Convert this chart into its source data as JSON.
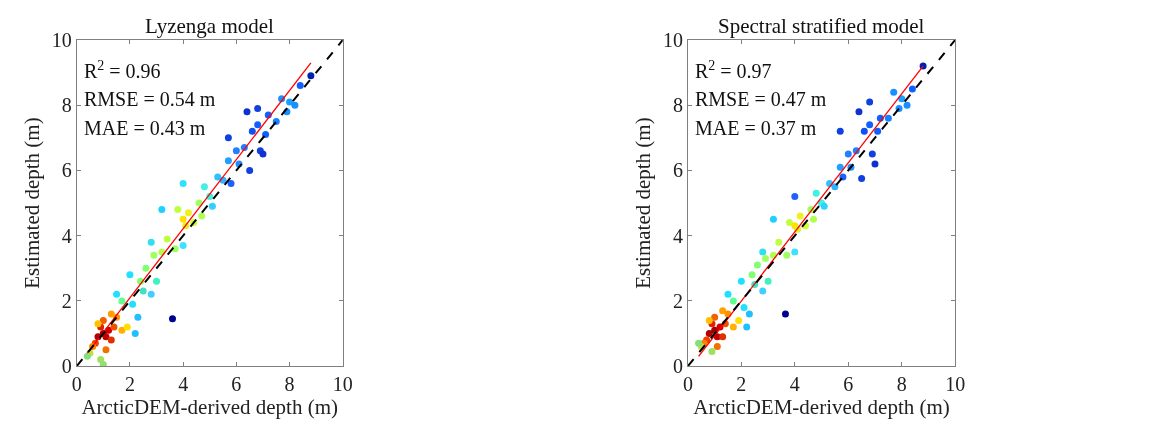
{
  "chart_data": [
    {
      "type": "scatter",
      "title": "Lyzenga model",
      "xlabel": "ArcticDEM-derived depth (m)",
      "ylabel": "Estimated depth (m)",
      "xlim": [
        0,
        10
      ],
      "ylim": [
        0,
        10
      ],
      "xticks": [
        0,
        2,
        4,
        6,
        8,
        10
      ],
      "yticks": [
        0,
        2,
        4,
        6,
        8,
        10
      ],
      "marker": "circle",
      "annotations": [
        "R$^{2}$ = 0.96",
        "RMSE = 0.54 m",
        "MAE = 0.43 m"
      ],
      "series": [
        {
          "x": [
            0.8,
            1.0,
            1.1,
            1.2,
            0.9,
            1.3,
            0.7,
            1.0,
            1.4,
            0.6,
            1.1,
            0.5,
            0.9,
            1.0,
            1.5,
            1.3,
            0.8,
            1.7,
            1.9,
            0.4,
            1.5,
            1.7,
            2.0,
            2.1,
            2.2,
            2.3,
            2.4,
            2.6,
            2.5,
            2.8,
            2.8,
            2.9,
            3.0,
            3.2,
            3.2,
            3.4,
            3.6,
            3.7,
            3.8,
            4.0,
            4.0,
            4.1,
            4.2,
            4.0,
            4.4,
            4.6,
            4.7,
            4.8,
            5.0,
            5.1,
            5.3,
            5.5,
            5.7,
            5.8,
            5.7,
            6.0,
            6.1,
            6.3,
            6.4,
            6.5,
            6.6,
            6.8,
            6.9,
            7.0,
            7.1,
            7.2,
            7.5,
            7.7,
            7.9,
            8.0,
            8.2,
            8.4,
            8.8,
            6.8
          ],
          "values": [
            0.9,
            1.0,
            0.9,
            1.1,
            1.2,
            0.8,
            0.7,
            1.4,
            1.2,
            0.6,
            0.5,
            0.4,
            0.2,
            0.05,
            1.5,
            1.6,
            1.3,
            1.1,
            1.2,
            0.3,
            2.2,
            2.0,
            2.8,
            1.9,
            1.0,
            1.5,
            2.6,
            3.0,
            2.3,
            2.2,
            3.8,
            3.4,
            2.6,
            4.8,
            3.5,
            3.9,
            1.45,
            3.6,
            4.8,
            4.5,
            5.6,
            4.3,
            4.7,
            3.7,
            4.4,
            5.0,
            4.6,
            5.5,
            5.2,
            4.9,
            5.8,
            5.7,
            6.3,
            5.6,
            7.0,
            6.6,
            6.2,
            6.7,
            7.8,
            6.0,
            7.2,
            7.4,
            6.6,
            6.5,
            7.1,
            7.7,
            7.5,
            8.2,
            7.8,
            8.1,
            8.0,
            8.6,
            8.9,
            7.9
          ],
          "colors": [
            "#b00000",
            "#a00000",
            "#c00000",
            "#d00000",
            "#e02000",
            "#e03000",
            "#f04000",
            "#f06000",
            "#f05000",
            "#ff8000",
            "#f07000",
            "#c0e040",
            "#a0e060",
            "#90e070",
            "#ff9000",
            "#ffa000",
            "#ffc000",
            "#ffb000",
            "#ffe000",
            "#80e080",
            "#20e0ff",
            "#60ff90",
            "#20e0ff",
            "#20e0ff",
            "#20c0ff",
            "#20c0ff",
            "#80ff70",
            "#80ff70",
            "#40e0c0",
            "#40d0ff",
            "#30e0f0",
            "#a0ff60",
            "#40f0c0",
            "#20d0ff",
            "#b0ff50",
            "#c0ff40",
            "#000090",
            "#a0ff60",
            "#c0ff40",
            "#ffe000",
            "#30e0ff",
            "#e0f020",
            "#f0f020",
            "#40e0ff",
            "#d0ff30",
            "#a0ff60",
            "#b0ff50",
            "#40f0e0",
            "#40f0e0",
            "#30d0ff",
            "#30c0ff",
            "#30b0ff",
            "#20a0ff",
            "#2060ff",
            "#1040e0",
            "#2080ff",
            "#2090ff",
            "#2080ff",
            "#1030d0",
            "#1040e0",
            "#1050f0",
            "#1060ff",
            "#1040e0",
            "#1030d0",
            "#1060ff",
            "#1060ff",
            "#1880ff",
            "#1890ff",
            "#1890ff",
            "#18a0ff",
            "#1890ff",
            "#1060ff",
            "#0020b0",
            "#1040e0"
          ]
        },
        {
          "type": "line",
          "x": [
            0.4,
            8.8
          ],
          "values": [
            0.4,
            9.3
          ],
          "color": "#ff0000",
          "line_style": "solid",
          "marker": "none"
        },
        {
          "type": "line",
          "x": [
            0,
            10
          ],
          "values": [
            0,
            10
          ],
          "color": "#000000",
          "line_style": "dashed",
          "marker": "none"
        }
      ]
    },
    {
      "type": "scatter",
      "title": "Spectral stratified model",
      "xlabel": "ArcticDEM-derived depth (m)",
      "ylabel": "Estimated depth (m)",
      "xlim": [
        0,
        10
      ],
      "ylim": [
        0,
        10
      ],
      "xticks": [
        0,
        2,
        4,
        6,
        8,
        10
      ],
      "yticks": [
        0,
        2,
        4,
        6,
        8,
        10
      ],
      "marker": "circle",
      "annotations": [
        "R$^{2}$ = 0.97",
        "RMSE = 0.47 m",
        "MAE = 0.37 m"
      ],
      "series": [
        {
          "x": [
            0.8,
            1.0,
            1.1,
            1.2,
            0.9,
            1.3,
            0.7,
            1.0,
            1.4,
            0.6,
            1.1,
            0.5,
            0.9,
            1.5,
            1.3,
            0.8,
            1.7,
            1.9,
            0.4,
            1.5,
            1.7,
            2.0,
            2.1,
            2.2,
            2.3,
            2.4,
            2.6,
            2.5,
            2.8,
            2.8,
            2.9,
            3.0,
            3.2,
            3.2,
            3.4,
            3.65,
            3.7,
            3.8,
            4.0,
            4.0,
            4.1,
            4.2,
            4.0,
            4.4,
            4.6,
            4.7,
            4.8,
            5.0,
            5.1,
            5.3,
            5.5,
            5.7,
            5.8,
            5.7,
            6.0,
            6.1,
            6.3,
            6.4,
            6.5,
            6.6,
            6.8,
            6.9,
            7.0,
            7.1,
            7.2,
            7.5,
            7.7,
            7.9,
            8.0,
            8.2,
            8.4,
            8.8,
            6.8
          ],
          "values": [
            1.0,
            1.1,
            0.9,
            1.2,
            1.3,
            0.9,
            0.8,
            1.5,
            1.3,
            0.7,
            0.6,
            0.6,
            0.45,
            1.6,
            1.7,
            1.4,
            1.2,
            1.4,
            0.7,
            2.2,
            2.0,
            2.6,
            1.8,
            1.2,
            1.6,
            2.8,
            3.1,
            2.5,
            2.3,
            3.5,
            3.3,
            2.6,
            4.5,
            3.4,
            3.8,
            1.6,
            3.4,
            4.4,
            4.3,
            5.2,
            4.2,
            4.6,
            3.5,
            4.3,
            4.8,
            4.5,
            5.3,
            5.0,
            4.9,
            5.6,
            5.5,
            6.1,
            5.8,
            7.2,
            6.5,
            6.1,
            6.6,
            7.8,
            5.75,
            7.2,
            7.4,
            6.5,
            6.2,
            7.2,
            7.6,
            7.6,
            8.4,
            7.9,
            8.2,
            8.0,
            8.5,
            9.2,
            8.1
          ],
          "colors": [
            "#b00000",
            "#a00000",
            "#c00000",
            "#d00000",
            "#e02000",
            "#e03000",
            "#f04000",
            "#f06000",
            "#f05000",
            "#ff8000",
            "#f07000",
            "#c0e040",
            "#a0e060",
            "#ff9000",
            "#ffa000",
            "#ffc000",
            "#ffb000",
            "#ffe000",
            "#80e080",
            "#20e0ff",
            "#60ff90",
            "#20e0ff",
            "#20e0ff",
            "#20c0ff",
            "#20c0ff",
            "#80ff70",
            "#80ff70",
            "#40e0c0",
            "#40d0ff",
            "#30e0f0",
            "#a0ff60",
            "#40f0c0",
            "#20d0ff",
            "#b0ff50",
            "#c0ff40",
            "#000090",
            "#a0ff60",
            "#c0ff40",
            "#ffe000",
            "#2060ff",
            "#e0f020",
            "#f0f020",
            "#40e0ff",
            "#d0ff30",
            "#a0ff60",
            "#b0ff50",
            "#40f0e0",
            "#40f0e0",
            "#30d0ff",
            "#30c0ff",
            "#30b0ff",
            "#20a0ff",
            "#2060ff",
            "#1040e0",
            "#2080ff",
            "#2090ff",
            "#2080ff",
            "#1030d0",
            "#1040e0",
            "#1050f0",
            "#1060ff",
            "#1040e0",
            "#1030d0",
            "#1060ff",
            "#1060ff",
            "#1880ff",
            "#1890ff",
            "#1890ff",
            "#18a0ff",
            "#1890ff",
            "#1060ff",
            "#0020b0",
            "#1040e0"
          ]
        },
        {
          "type": "line",
          "x": [
            0.4,
            8.8
          ],
          "values": [
            0.3,
            9.2
          ],
          "color": "#ff0000",
          "line_style": "solid",
          "marker": "none"
        },
        {
          "type": "line",
          "x": [
            0,
            10
          ],
          "values": [
            0,
            10
          ],
          "color": "#000000",
          "line_style": "dashed",
          "marker": "none"
        }
      ]
    }
  ]
}
